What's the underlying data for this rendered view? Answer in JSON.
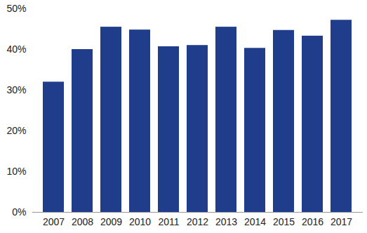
{
  "chart_data": {
    "type": "bar",
    "categories": [
      "2007",
      "2008",
      "2009",
      "2010",
      "2011",
      "2012",
      "2013",
      "2014",
      "2015",
      "2016",
      "2017"
    ],
    "values": [
      32,
      40,
      45.5,
      44.8,
      40.7,
      41,
      45.5,
      40.3,
      44.7,
      43.3,
      47.2
    ],
    "color": "#1f3d8a",
    "ylim": [
      0,
      50
    ],
    "yticks": [
      {
        "value": 0,
        "label": "0%"
      },
      {
        "value": 10,
        "label": "10%"
      },
      {
        "value": 20,
        "label": "20%"
      },
      {
        "value": 30,
        "label": "30%"
      },
      {
        "value": 40,
        "label": "40%"
      },
      {
        "value": 50,
        "label": "50%"
      }
    ],
    "grid": false
  }
}
